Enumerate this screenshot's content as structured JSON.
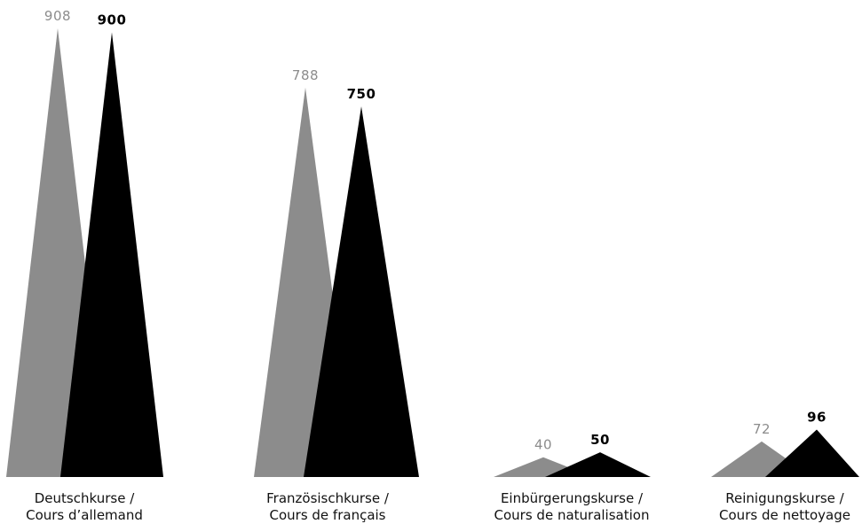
{
  "chart_data": {
    "type": "area",
    "title": "",
    "xlabel": "",
    "ylabel": "",
    "ylim": [
      0,
      908
    ],
    "grid": false,
    "legend": "none",
    "categories": [
      {
        "line1": "Deutschkurse /",
        "line2": "Cours d’allemand"
      },
      {
        "line1": "Französischkurse /",
        "line2": "Cours de français"
      },
      {
        "line1": "Einbürgerungskurse /",
        "line2": "Cours de naturalisation"
      },
      {
        "line1": "Reinigungskurse /",
        "line2": "Cours de nettoyage"
      }
    ],
    "series": [
      {
        "color": "#8c8c8c",
        "label_color": "#8c8c8c",
        "values": [
          908,
          788,
          40,
          72
        ]
      },
      {
        "color": "#000000",
        "label_color": "#000000",
        "values": [
          900,
          750,
          50,
          96
        ]
      }
    ]
  }
}
